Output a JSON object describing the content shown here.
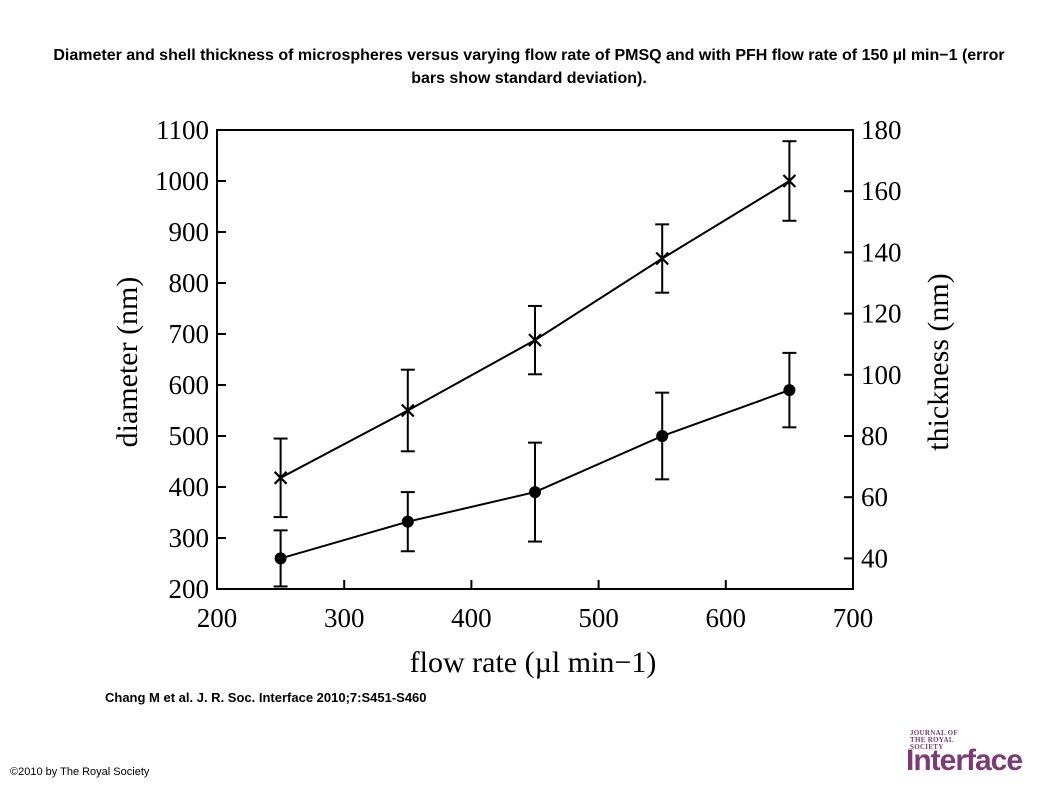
{
  "figure": {
    "title": "Diameter and shell thickness of microspheres versus varying flow rate of PMSQ and with PFH flow rate of 150 µl min−1 (error bars show standard deviation).",
    "citation": "Chang M et al. J. R. Soc. Interface 2010;7:S451-S460",
    "copyright": "©2010 by The Royal Society",
    "logo": {
      "small_text": "JOURNAL OF THE ROYAL SOCIETY",
      "main_text": "Interface",
      "color": "#7b3b73"
    }
  },
  "chart_data": {
    "type": "line",
    "xlabel": "flow rate (µl min−1)",
    "ylabel": "diameter (nm)",
    "y2label": "thickness (nm)",
    "xlim": [
      200,
      700
    ],
    "ylim": [
      200,
      1100
    ],
    "y2lim": [
      30,
      180
    ],
    "xticks": [
      200,
      300,
      400,
      500,
      600,
      700
    ],
    "yticks": [
      200,
      300,
      400,
      500,
      600,
      700,
      800,
      900,
      1000,
      1100
    ],
    "y2ticks": [
      40,
      60,
      80,
      100,
      120,
      140,
      160,
      180
    ],
    "grid": false,
    "series": [
      {
        "marker": "x",
        "axis": "left",
        "x": [
          250,
          350,
          450,
          550,
          650
        ],
        "y": [
          418,
          550,
          688,
          848,
          1000
        ],
        "err": [
          77,
          80,
          67,
          67,
          78
        ]
      },
      {
        "marker": "circle",
        "axis": "left",
        "x": [
          250,
          350,
          450,
          550,
          650
        ],
        "y": [
          260,
          332,
          390,
          500,
          590
        ],
        "err": [
          55,
          58,
          97,
          85,
          73
        ]
      }
    ]
  }
}
